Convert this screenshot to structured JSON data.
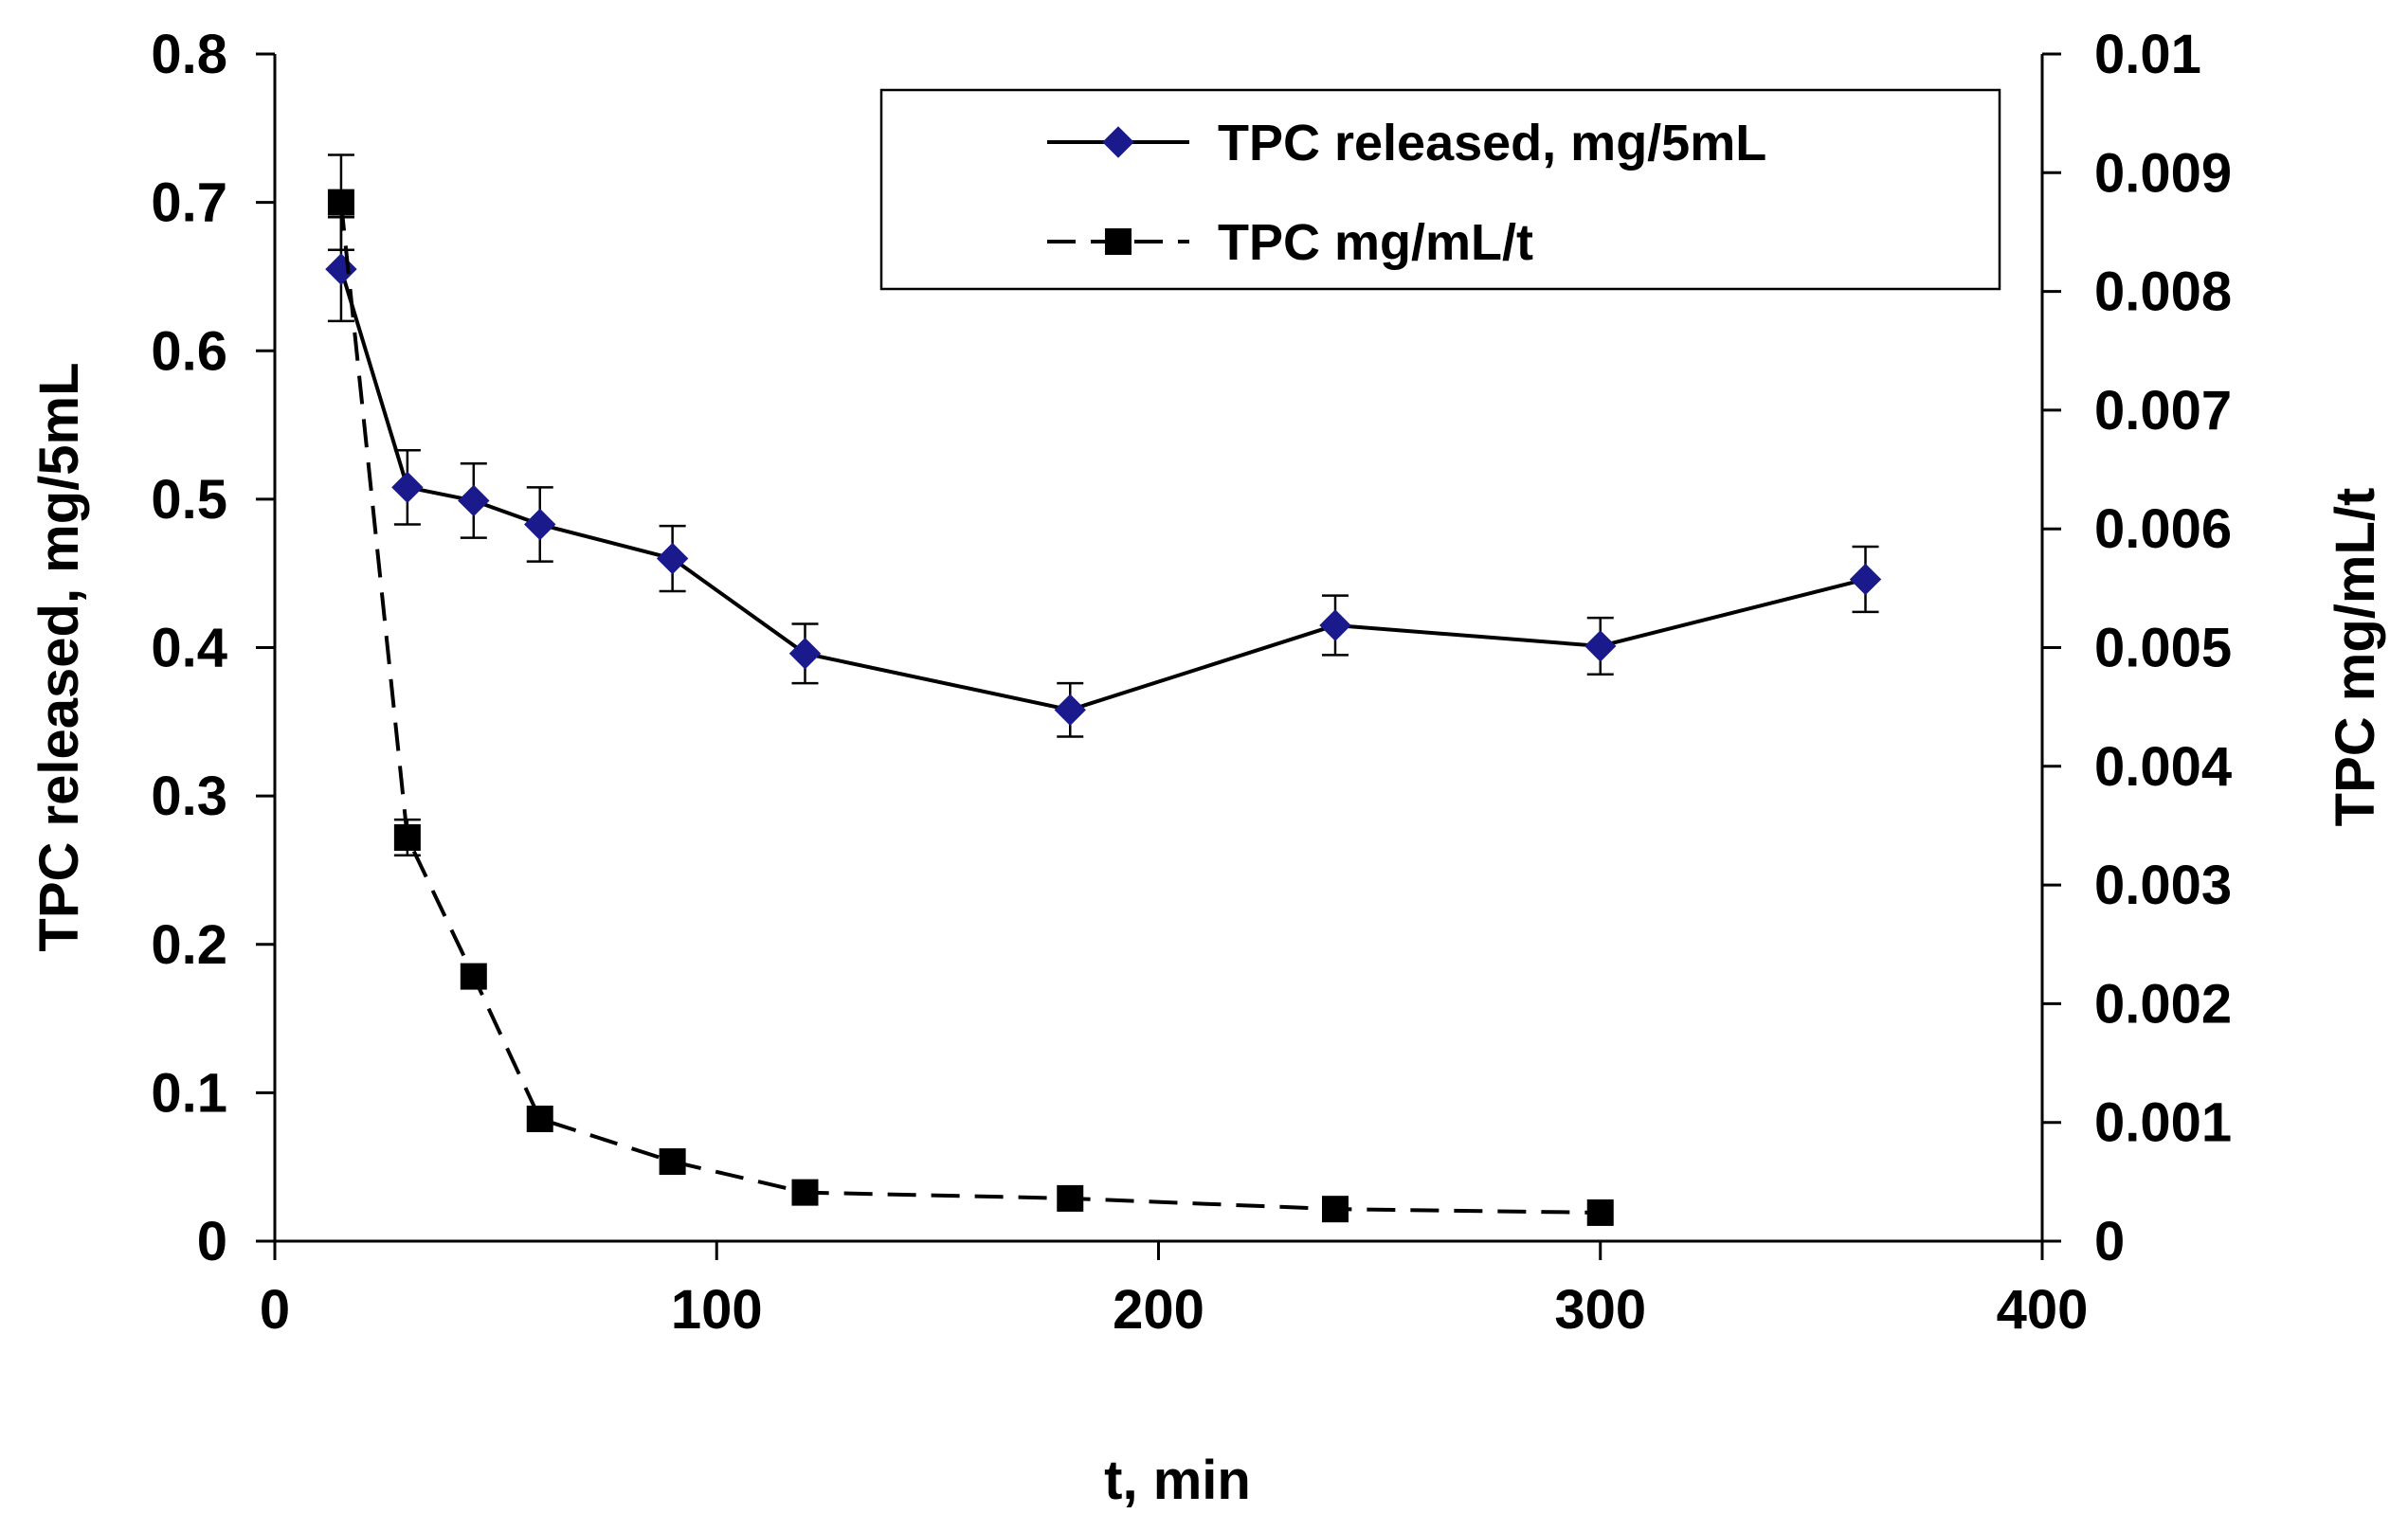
{
  "chart_data": {
    "type": "line",
    "x_axis": {
      "label": "t, min",
      "range": [
        0,
        400
      ],
      "ticks": [
        0,
        100,
        200,
        300,
        400
      ],
      "tick_labels": [
        "0",
        "100",
        "200",
        "300",
        "400"
      ]
    },
    "y_axis_left": {
      "label": "TPC released, mg/5mL",
      "range": [
        0,
        0.8
      ],
      "ticks": [
        0,
        0.1,
        0.2,
        0.3,
        0.4,
        0.5,
        0.6,
        0.7,
        0.8
      ],
      "tick_labels": [
        "0",
        "0.1",
        "0.2",
        "0.3",
        "0.4",
        "0.5",
        "0.6",
        "0.7",
        "0.8"
      ]
    },
    "y_axis_right": {
      "label": "TPC mg/mL/t",
      "range": [
        0,
        0.01
      ],
      "ticks": [
        0,
        0.001,
        0.002,
        0.003,
        0.004,
        0.005,
        0.006,
        0.007,
        0.008,
        0.009,
        0.01
      ],
      "tick_labels": [
        "0",
        "0.001",
        "0.002",
        "0.003",
        "0.004",
        "0.005",
        "0.006",
        "0.007",
        "0.008",
        "0.009",
        "0.01"
      ]
    },
    "grid": false,
    "legend_position": "top-right",
    "series": [
      {
        "name": "TPC released, mg/5mL",
        "axis": "left",
        "marker": "diamond",
        "line_style": "solid",
        "color": "#1a1a8c",
        "x": [
          15,
          30,
          45,
          60,
          90,
          120,
          180,
          240,
          300,
          360
        ],
        "y": [
          0.655,
          0.508,
          0.499,
          0.483,
          0.46,
          0.396,
          0.358,
          0.415,
          0.401,
          0.446
        ],
        "error": [
          0.035,
          0.025,
          0.025,
          0.025,
          0.022,
          0.02,
          0.018,
          0.02,
          0.019,
          0.022
        ]
      },
      {
        "name": "TPC mg/mL/t",
        "axis": "right",
        "marker": "square",
        "line_style": "dashed",
        "color": "#000000",
        "x": [
          15,
          30,
          45,
          60,
          90,
          120,
          180,
          240,
          300
        ],
        "y": [
          0.00875,
          0.0034,
          0.00223,
          0.00103,
          0.00067,
          0.00041,
          0.00036,
          0.00027,
          0.00024
        ],
        "error": [
          0.0004,
          0.00015,
          0,
          0,
          0,
          0,
          0,
          0,
          0
        ]
      }
    ]
  }
}
